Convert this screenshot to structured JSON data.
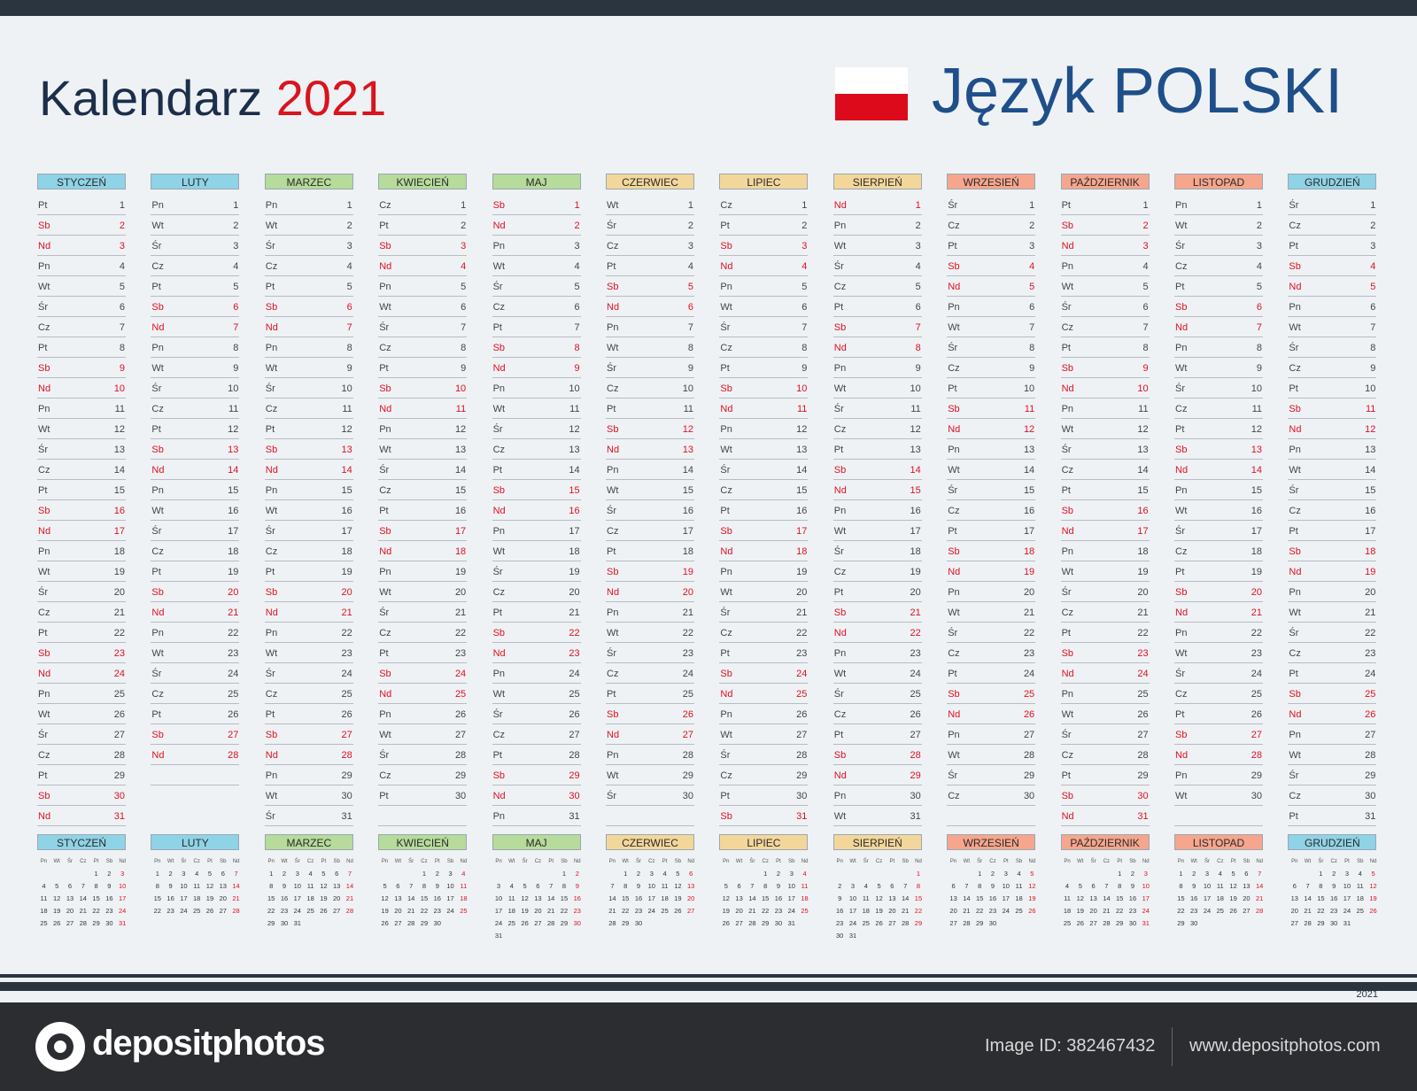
{
  "header": {
    "title": "Kalendarz",
    "year": "2021",
    "language": "Język POLSKI"
  },
  "colors": {
    "weekend": "#e01020",
    "title_dark": "#1c2e4a",
    "language_blue": "#1f4f8a",
    "flag_white": "#ffffff",
    "flag_red": "#dc0a1a"
  },
  "mini_headers": [
    "Pn",
    "Wt",
    "Śr",
    "Cz",
    "Pt",
    "Sb",
    "Nd"
  ],
  "months": [
    {
      "name": "STYCZEŃ",
      "color": "#8fd3e6",
      "start": 4,
      "days": 31
    },
    {
      "name": "LUTY",
      "color": "#8fd3e6",
      "start": 0,
      "days": 28
    },
    {
      "name": "MARZEC",
      "color": "#b6db9a",
      "start": 0,
      "days": 31
    },
    {
      "name": "KWIECIEŃ",
      "color": "#b6db9a",
      "start": 3,
      "days": 30
    },
    {
      "name": "MAJ",
      "color": "#b6db9a",
      "start": 5,
      "days": 31
    },
    {
      "name": "CZERWIEC",
      "color": "#f3d79a",
      "start": 1,
      "days": 30
    },
    {
      "name": "LIPIEC",
      "color": "#f3d79a",
      "start": 3,
      "days": 31
    },
    {
      "name": "SIERPIEŃ",
      "color": "#f3d79a",
      "start": 6,
      "days": 31
    },
    {
      "name": "WRZESIEŃ",
      "color": "#f6a68c",
      "start": 2,
      "days": 30
    },
    {
      "name": "PAŹDZIERNIK",
      "color": "#f6a68c",
      "start": 4,
      "days": 31
    },
    {
      "name": "LISTOPAD",
      "color": "#f6a68c",
      "start": 0,
      "days": 30
    },
    {
      "name": "GRUDZIEŃ",
      "color": "#8fd3e6",
      "start": 2,
      "days": 31
    }
  ],
  "footer": {
    "calendar_year": "2021",
    "brand": "depositphotos",
    "image_id": "Image ID: 382467432",
    "site": "www.depositphotos.com"
  }
}
